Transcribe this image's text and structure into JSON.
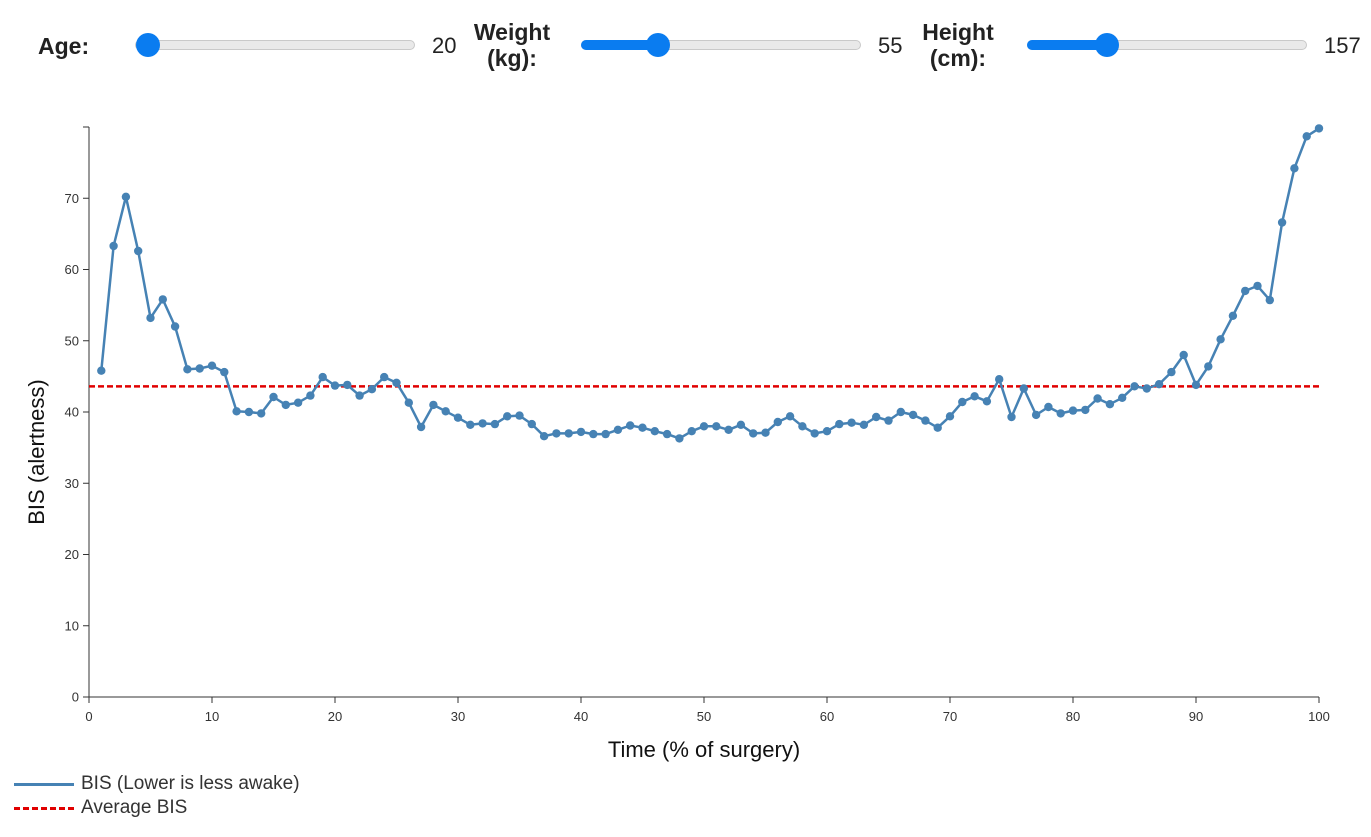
{
  "controls": {
    "age": {
      "label": "Age:",
      "value": "20",
      "fraction": 0.0
    },
    "weight": {
      "label_line1": "Weight",
      "label_line2": "(kg):",
      "value": "55",
      "fraction": 0.25
    },
    "height": {
      "label_line1": "Height",
      "label_line2": "(cm):",
      "value": "157",
      "fraction": 0.26
    }
  },
  "colors": {
    "accent": "#0a7cf0",
    "series_line": "#4682b4",
    "average_line": "#e00000"
  },
  "chart_data": {
    "type": "line",
    "xlabel": "Time (% of surgery)",
    "ylabel": "BIS (alertness)",
    "xlim": [
      0,
      100
    ],
    "ylim": [
      0,
      80
    ],
    "xticks": [
      0,
      10,
      20,
      30,
      40,
      50,
      60,
      70,
      80,
      90,
      100
    ],
    "yticks": [
      0,
      10,
      20,
      30,
      40,
      50,
      60,
      70
    ],
    "legend_position": "bottom-left",
    "grid": false,
    "series": [
      {
        "name": "BIS (Lower is less awake)",
        "x": [
          1,
          2,
          3,
          4,
          5,
          6,
          7,
          8,
          9,
          10,
          11,
          12,
          13,
          14,
          15,
          16,
          17,
          18,
          19,
          20,
          21,
          22,
          23,
          24,
          25,
          26,
          27,
          28,
          29,
          30,
          31,
          32,
          33,
          34,
          35,
          36,
          37,
          38,
          39,
          40,
          41,
          42,
          43,
          44,
          45,
          46,
          47,
          48,
          49,
          50,
          51,
          52,
          53,
          54,
          55,
          56,
          57,
          58,
          59,
          60,
          61,
          62,
          63,
          64,
          65,
          66,
          67,
          68,
          69,
          70,
          71,
          72,
          73,
          74,
          75,
          76,
          77,
          78,
          79,
          80,
          81,
          82,
          83,
          84,
          85,
          86,
          87,
          88,
          89,
          90,
          91,
          92,
          93,
          94,
          95,
          96,
          97,
          98,
          99,
          100
        ],
        "values": [
          45.8,
          63.3,
          70.2,
          62.6,
          53.2,
          55.8,
          52.0,
          46.0,
          46.1,
          46.5,
          45.6,
          40.1,
          40.0,
          39.8,
          42.1,
          41.0,
          41.3,
          42.3,
          44.9,
          43.7,
          43.8,
          42.3,
          43.2,
          44.9,
          44.1,
          41.3,
          37.9,
          41.0,
          40.1,
          39.2,
          38.2,
          38.4,
          38.3,
          39.4,
          39.5,
          38.3,
          36.6,
          37.0,
          37.0,
          37.2,
          36.9,
          36.9,
          37.5,
          38.1,
          37.8,
          37.3,
          36.9,
          36.3,
          37.3,
          38.0,
          38.0,
          37.5,
          38.2,
          37.0,
          37.1,
          38.6,
          39.4,
          38.0,
          37.0,
          37.3,
          38.3,
          38.5,
          38.2,
          39.3,
          38.8,
          40.0,
          39.6,
          38.8,
          37.8,
          39.4,
          41.4,
          42.2,
          41.5,
          44.6,
          39.3,
          43.3,
          39.6,
          40.7,
          39.8,
          40.2,
          40.3,
          41.9,
          41.1,
          42.0,
          43.6,
          43.3,
          43.9,
          45.6,
          48.0,
          43.8,
          46.4,
          50.2,
          53.5,
          57.0,
          57.7,
          55.7,
          66.6,
          74.2,
          78.7,
          79.8
        ]
      },
      {
        "name": "Average BIS",
        "value": 43.6
      }
    ]
  }
}
